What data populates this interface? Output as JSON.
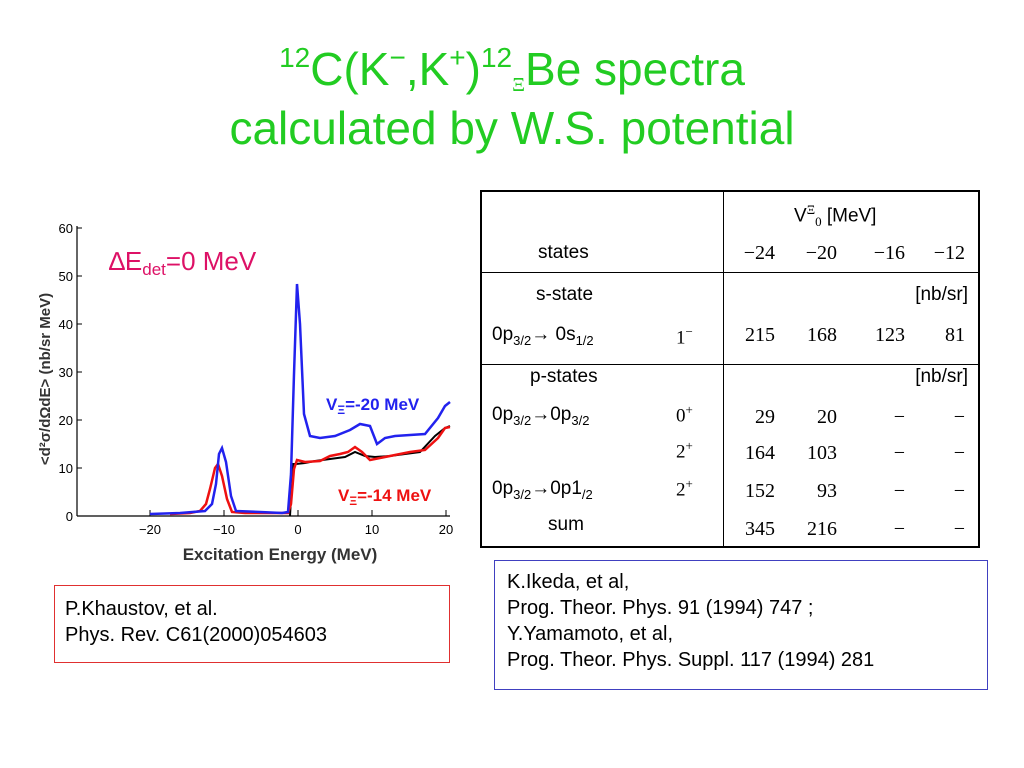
{
  "title": {
    "mass_a": "12",
    "line1_mid": "C(K",
    "minus": "−",
    "comma_k": ",K",
    "plus": "+",
    "close": ")",
    "mass_b": "12",
    "xi": "Ξ",
    "line1_end": "Be spectra",
    "line2": "calculated by W.S. potential"
  },
  "plot": {
    "annotation_prefix": "∆E",
    "annotation_sub": "det",
    "annotation_suffix": "=0 MeV",
    "ylabel": "<d²σ/dΩdE> (nb/sr MeV)",
    "xlabel": "Excitation Energy (MeV)",
    "yticks": [
      "0",
      "10",
      "20",
      "30",
      "40",
      "50",
      "60"
    ],
    "xticks": [
      "−20",
      "−10",
      "0",
      "10",
      "20"
    ],
    "series_blue_label": "V",
    "series_blue_sub": "Ξ",
    "series_blue_value": "=-20 MeV",
    "series_red_label": "V",
    "series_red_sub": "Ξ",
    "series_red_value": "=-14 MeV",
    "colors": {
      "blue": "#2222ee",
      "red": "#ee1111",
      "black": "#000000"
    }
  },
  "table": {
    "v_header": "V",
    "v_header_sup": "Ξ",
    "v_header_sub": "0",
    "v_header_unit": " [MeV]",
    "states_label": "states",
    "potentials": [
      "−24",
      "−20",
      "−16",
      "−12"
    ],
    "s_state_label": "s-state",
    "unit": "[nb/sr]",
    "s_transition": {
      "a": "0p",
      "a_sub": "3/2",
      "arrow": "→",
      "b": " 0s",
      "b_sub": "1/2",
      "jp": "1",
      "jp_sup": "−"
    },
    "s_values": [
      "215",
      "168",
      "123",
      "81"
    ],
    "p_states_label": "p-states",
    "p_transition1": {
      "a": "0p",
      "a_sub": "3/2",
      "arrow": "→",
      "b": "0p",
      "b_sub": "3/2"
    },
    "p_transition2": {
      "a": "0p",
      "a_sub": "3/2",
      "arrow": "→",
      "b": "0p1",
      "b_sub": "/2"
    },
    "rows": [
      {
        "jp": "0",
        "jp_sup": "+",
        "values": [
          "29",
          "20",
          "−",
          "−"
        ]
      },
      {
        "jp": "2",
        "jp_sup": "+",
        "values": [
          "164",
          "103",
          "−",
          "−"
        ]
      },
      {
        "jp": "2",
        "jp_sup": "+",
        "values": [
          "152",
          "93",
          "−",
          "−"
        ]
      }
    ],
    "sum_label": "sum",
    "sum_values": [
      "345",
      "216",
      "−",
      "−"
    ]
  },
  "ref_left": {
    "line1": "P.Khaustov, et al.",
    "line2": "Phys. Rev. C61(2000)054603"
  },
  "ref_right": {
    "line1": "K.Ikeda, et al,",
    "line2": "Prog. Theor. Phys. 91 (1994) 747 ;",
    "line3": "Y.Yamamoto, et al,",
    "line4": "Prog. Theor. Phys. Suppl. 117 (1994) 281"
  }
}
